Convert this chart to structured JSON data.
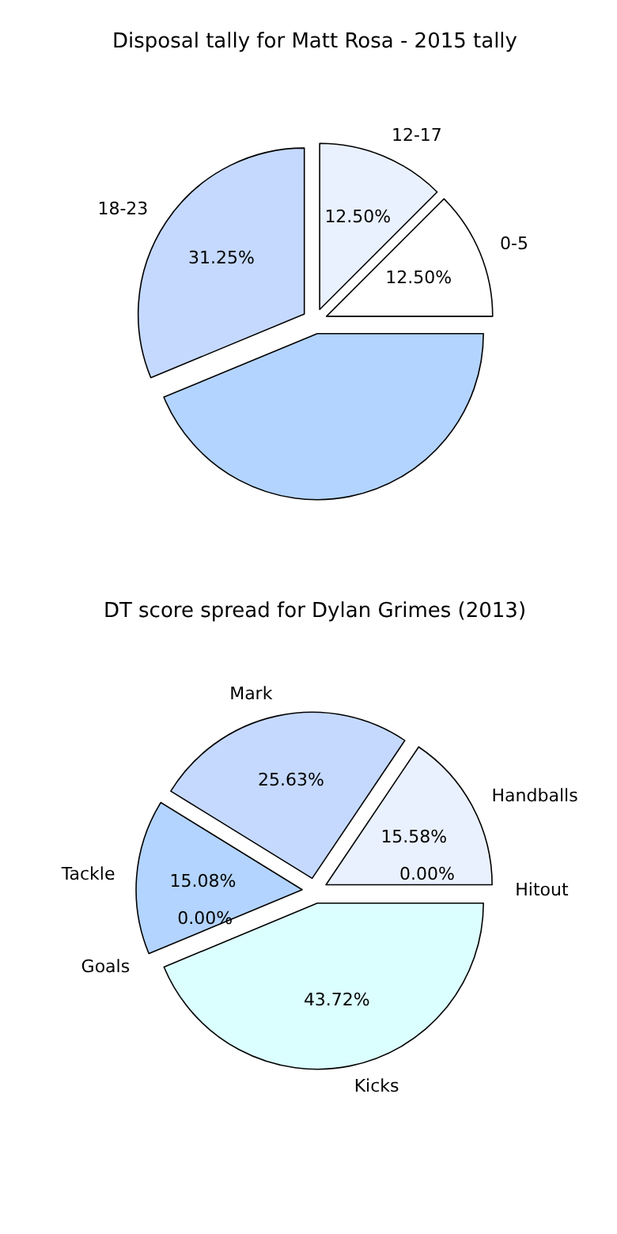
{
  "chart_data": [
    {
      "type": "pie",
      "title": "Disposal tally for Matt Rosa - 2015 tally",
      "categories": [
        "0-5",
        "12-17",
        "18-23",
        null
      ],
      "values": [
        12.5,
        12.5,
        31.25,
        43.75
      ],
      "colors": [
        "#ffffff",
        "#eaf1fe",
        "#c5d9fe",
        "#b3d4fe"
      ],
      "value_labels": [
        "12.50%",
        "12.50%",
        "31.25%",
        null
      ]
    },
    {
      "type": "pie",
      "title": "DT score spread for Dylan Grimes (2013)",
      "categories": [
        "Handballs",
        "Mark",
        "Tackle",
        "Goals",
        "Kicks",
        "Hitout"
      ],
      "values": [
        15.58,
        25.63,
        15.08,
        0,
        43.72,
        0
      ],
      "colors": [
        "#eaf1fe",
        "#c5d9fe",
        "#b3d4fe",
        null,
        "#dbfefe",
        null
      ],
      "value_labels": [
        "15.58%",
        "25.63%",
        "15.08%",
        "0.00%",
        "43.72%",
        "0.00%"
      ]
    }
  ]
}
